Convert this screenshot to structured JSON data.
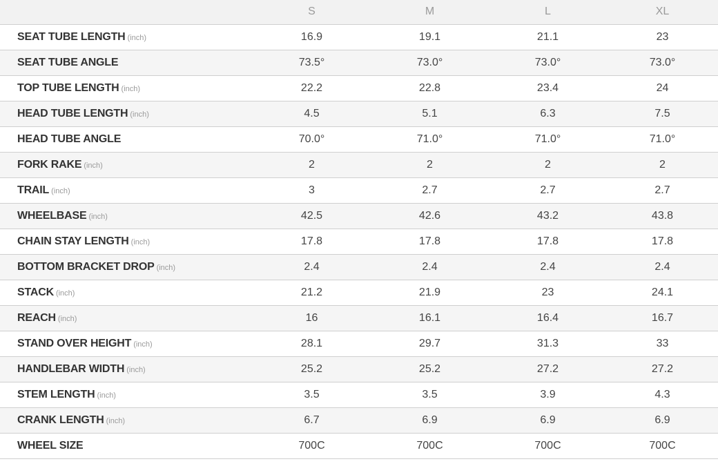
{
  "sizes": [
    "S",
    "M",
    "L",
    "XL"
  ],
  "rows": [
    {
      "label": "SEAT TUBE LENGTH",
      "unit": "(inch)",
      "values": [
        "16.9",
        "19.1",
        "21.1",
        "23"
      ]
    },
    {
      "label": "SEAT TUBE ANGLE",
      "unit": "",
      "values": [
        "73.5°",
        "73.0°",
        "73.0°",
        "73.0°"
      ]
    },
    {
      "label": "TOP TUBE LENGTH",
      "unit": "(inch)",
      "values": [
        "22.2",
        "22.8",
        "23.4",
        "24"
      ]
    },
    {
      "label": "HEAD TUBE LENGTH",
      "unit": "(inch)",
      "values": [
        "4.5",
        "5.1",
        "6.3",
        "7.5"
      ]
    },
    {
      "label": "HEAD TUBE ANGLE",
      "unit": "",
      "values": [
        "70.0°",
        "71.0°",
        "71.0°",
        "71.0°"
      ]
    },
    {
      "label": "FORK RAKE",
      "unit": "(inch)",
      "values": [
        "2",
        "2",
        "2",
        "2"
      ]
    },
    {
      "label": "TRAIL",
      "unit": "(inch)",
      "values": [
        "3",
        "2.7",
        "2.7",
        "2.7"
      ]
    },
    {
      "label": "WHEELBASE",
      "unit": "(inch)",
      "values": [
        "42.5",
        "42.6",
        "43.2",
        "43.8"
      ]
    },
    {
      "label": "CHAIN STAY LENGTH",
      "unit": "(inch)",
      "values": [
        "17.8",
        "17.8",
        "17.8",
        "17.8"
      ]
    },
    {
      "label": "BOTTOM BRACKET DROP",
      "unit": "(inch)",
      "values": [
        "2.4",
        "2.4",
        "2.4",
        "2.4"
      ]
    },
    {
      "label": "STACK",
      "unit": "(inch)",
      "values": [
        "21.2",
        "21.9",
        "23",
        "24.1"
      ]
    },
    {
      "label": "REACH",
      "unit": "(inch)",
      "values": [
        "16",
        "16.1",
        "16.4",
        "16.7"
      ]
    },
    {
      "label": "STAND OVER HEIGHT",
      "unit": "(inch)",
      "values": [
        "28.1",
        "29.7",
        "31.3",
        "33"
      ]
    },
    {
      "label": "HANDLEBAR WIDTH",
      "unit": "(inch)",
      "values": [
        "25.2",
        "25.2",
        "27.2",
        "27.2"
      ]
    },
    {
      "label": "STEM LENGTH",
      "unit": "(inch)",
      "values": [
        "3.5",
        "3.5",
        "3.9",
        "4.3"
      ]
    },
    {
      "label": "CRANK LENGTH",
      "unit": "(inch)",
      "values": [
        "6.7",
        "6.9",
        "6.9",
        "6.9"
      ]
    },
    {
      "label": "WHEEL SIZE",
      "unit": "",
      "values": [
        "700C",
        "700C",
        "700C",
        "700C"
      ]
    }
  ]
}
